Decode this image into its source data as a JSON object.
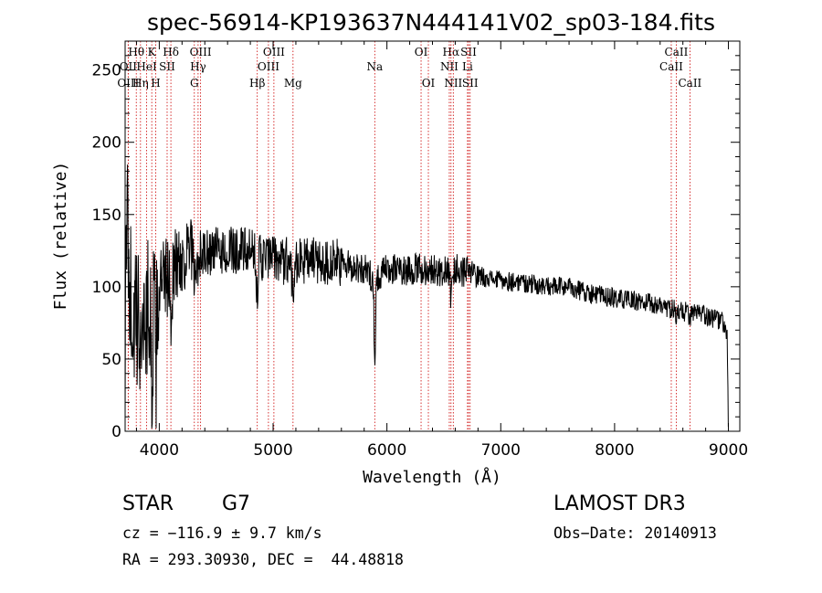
{
  "chart_data": {
    "type": "line",
    "title": "spec-56914-KP193637N444141V02_sp03-184.fits",
    "xlabel": "Wavelength (Å)",
    "ylabel": "Flux (relative)",
    "xlim": [
      3700,
      9100
    ],
    "ylim": [
      0,
      270
    ],
    "xticks": [
      4000,
      5000,
      6000,
      7000,
      8000,
      9000
    ],
    "xtick_labels": [
      "4000",
      "5000",
      "6000",
      "7000",
      "8000",
      "9000"
    ],
    "yticks": [
      0,
      50,
      100,
      150,
      200,
      250
    ],
    "ytick_labels": [
      "0",
      "50",
      "100",
      "150",
      "200",
      "250"
    ],
    "spectrum": {
      "anchors": [
        [
          3700,
          60
        ],
        [
          3720,
          150
        ],
        [
          3750,
          90
        ],
        [
          3800,
          70
        ],
        [
          3850,
          75
        ],
        [
          3900,
          85
        ],
        [
          3950,
          95
        ],
        [
          4000,
          100
        ],
        [
          4100,
          110
        ],
        [
          4200,
          120
        ],
        [
          4300,
          125
        ],
        [
          4400,
          122
        ],
        [
          4500,
          125
        ],
        [
          4600,
          124
        ],
        [
          4700,
          126
        ],
        [
          4800,
          123
        ],
        [
          4900,
          120
        ],
        [
          5000,
          120
        ],
        [
          5100,
          118
        ],
        [
          5200,
          118
        ],
        [
          5400,
          118
        ],
        [
          5600,
          116
        ],
        [
          5800,
          112
        ],
        [
          5900,
          105
        ],
        [
          6000,
          112
        ],
        [
          6200,
          112
        ],
        [
          6400,
          112
        ],
        [
          6500,
          110
        ],
        [
          6600,
          112
        ],
        [
          6800,
          108
        ],
        [
          7000,
          104
        ],
        [
          7200,
          103
        ],
        [
          7400,
          100
        ],
        [
          7600,
          100
        ],
        [
          7800,
          95
        ],
        [
          8000,
          92
        ],
        [
          8200,
          90
        ],
        [
          8400,
          87
        ],
        [
          8600,
          83
        ],
        [
          8800,
          80
        ],
        [
          8950,
          76
        ],
        [
          8990,
          65
        ],
        [
          9000,
          0
        ]
      ],
      "absorption_features": [
        {
          "center": 3934,
          "depth": 55,
          "width": 12
        },
        {
          "center": 3969,
          "depth": 50,
          "width": 12
        },
        {
          "center": 4102,
          "depth": 30,
          "width": 12
        },
        {
          "center": 4308,
          "depth": 25,
          "width": 14
        },
        {
          "center": 4341,
          "depth": 20,
          "width": 10
        },
        {
          "center": 4861,
          "depth": 20,
          "width": 12
        },
        {
          "center": 5175,
          "depth": 15,
          "width": 16
        },
        {
          "center": 5893,
          "depth": 65,
          "width": 8
        },
        {
          "center": 6563,
          "depth": 18,
          "width": 10
        },
        {
          "center": 8542,
          "depth": 8,
          "width": 8
        },
        {
          "center": 8662,
          "depth": 8,
          "width": 8
        }
      ],
      "noise": [
        {
          "from": 3700,
          "to": 4000,
          "amplitude": 55
        },
        {
          "from": 4000,
          "to": 4300,
          "amplitude": 28
        },
        {
          "from": 4300,
          "to": 5600,
          "amplitude": 17
        },
        {
          "from": 5600,
          "to": 6800,
          "amplitude": 11
        },
        {
          "from": 6800,
          "to": 9000,
          "amplitude": 7
        }
      ]
    },
    "lines": [
      {
        "label": "Hθ",
        "wavelength": 3798,
        "row": 1
      },
      {
        "label": "OII",
        "wavelength": 3727,
        "row": 2
      },
      {
        "label": "OIII",
        "wavelength": 3727,
        "row": 3
      },
      {
        "label": "Hη",
        "wavelength": 3835,
        "row": 3
      },
      {
        "label": "HeI",
        "wavelength": 3889,
        "row": 2
      },
      {
        "label": "K",
        "wavelength": 3934,
        "row": 1
      },
      {
        "label": "H",
        "wavelength": 3969,
        "row": 3
      },
      {
        "label": "SII",
        "wavelength": 4069,
        "row": 2
      },
      {
        "label": "Hδ",
        "wavelength": 4102,
        "row": 1
      },
      {
        "label": "OIII",
        "wavelength": 4363,
        "row": 1
      },
      {
        "label": "Hγ",
        "wavelength": 4341,
        "row": 2
      },
      {
        "label": "G",
        "wavelength": 4308,
        "row": 3
      },
      {
        "label": "Hβ",
        "wavelength": 4861,
        "row": 3
      },
      {
        "label": "OIII",
        "wavelength": 5007,
        "row": 1
      },
      {
        "label": "OIII",
        "wavelength": 4959,
        "row": 2
      },
      {
        "label": "Mg",
        "wavelength": 5175,
        "row": 3
      },
      {
        "label": "Na",
        "wavelength": 5893,
        "row": 2
      },
      {
        "label": "OI",
        "wavelength": 6300,
        "row": 1
      },
      {
        "label": "OI",
        "wavelength": 6364,
        "row": 3
      },
      {
        "label": "Hα",
        "wavelength": 6563,
        "row": 1
      },
      {
        "label": "SII",
        "wavelength": 6717,
        "row": 1
      },
      {
        "label": "NII",
        "wavelength": 6548,
        "row": 2
      },
      {
        "label": "Li",
        "wavelength": 6708,
        "row": 2
      },
      {
        "label": "NII",
        "wavelength": 6583,
        "row": 3
      },
      {
        "label": "SII",
        "wavelength": 6731,
        "row": 3
      },
      {
        "label": "CaII",
        "wavelength": 8542,
        "row": 1
      },
      {
        "label": "CaII",
        "wavelength": 8498,
        "row": 2
      },
      {
        "label": "CaII",
        "wavelength": 8662,
        "row": 3
      }
    ],
    "colors": {
      "spectrum": "#000000",
      "lines": "#cc0000",
      "axes": "#000000"
    }
  },
  "info": {
    "object_class": "STAR",
    "subclass": "G7",
    "survey": "LAMOST DR3",
    "redshift": "cz = −116.9 ± 9.7 km/s",
    "obs_date": "Obs−Date: 20140913",
    "coords": "RA = 293.30930, DEC =  44.48818"
  }
}
